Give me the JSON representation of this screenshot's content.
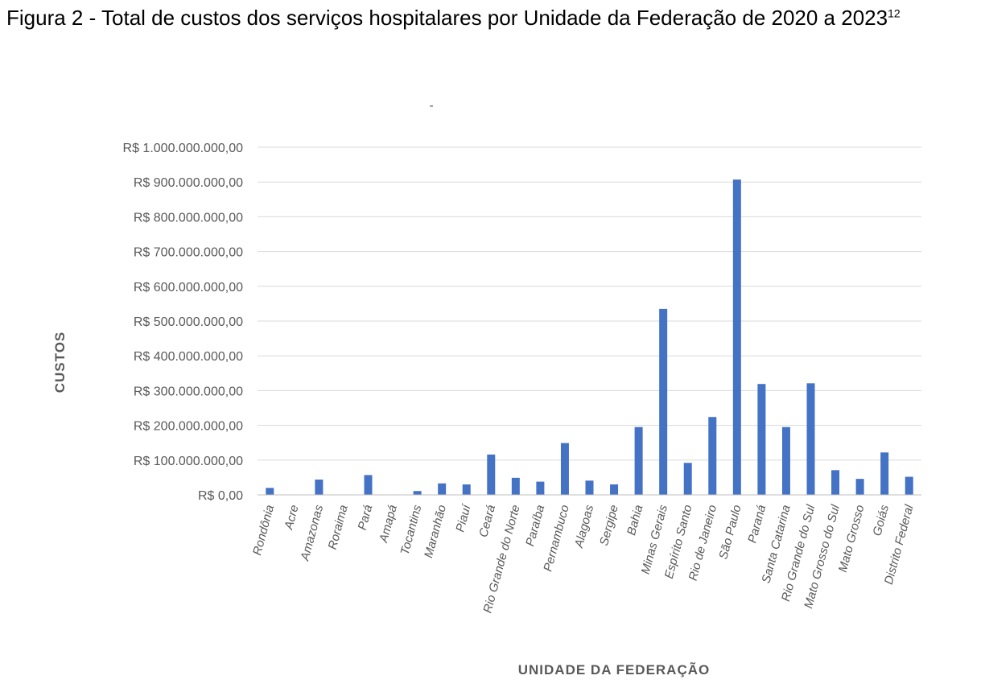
{
  "caption": {
    "text": "Figura 2 - Total de custos dos serviços hospitalares por Unidade da Federação de 2020 a 2023",
    "footnote": "12"
  },
  "chart_data": {
    "type": "bar",
    "title": "",
    "chart_title_mark": "-",
    "xlabel": "UNIDADE DA FEDERAÇÃO",
    "ylabel": "CUSTOS",
    "ylim": [
      0,
      1000000000
    ],
    "grid": true,
    "legend": "none",
    "bar_color": "#4472C4",
    "y_ticks": [
      {
        "value": 0,
        "label": "R$ 0,00"
      },
      {
        "value": 100000000,
        "label": "R$ 100.000.000,00"
      },
      {
        "value": 200000000,
        "label": "R$ 200.000.000,00"
      },
      {
        "value": 300000000,
        "label": "R$ 300.000.000,00"
      },
      {
        "value": 400000000,
        "label": "R$ 400.000.000,00"
      },
      {
        "value": 500000000,
        "label": "R$ 500.000.000,00"
      },
      {
        "value": 600000000,
        "label": "R$ 600.000.000,00"
      },
      {
        "value": 700000000,
        "label": "R$ 700.000.000,00"
      },
      {
        "value": 800000000,
        "label": "R$ 800.000.000,00"
      },
      {
        "value": 900000000,
        "label": "R$ 900.000.000,00"
      },
      {
        "value": 1000000000,
        "label": "R$ 1.000.000.000,00"
      }
    ],
    "categories": [
      "Rondônia",
      "Acre",
      "Amazonas",
      "Roraima",
      "Pará",
      "Amapá",
      "Tocantins",
      "Maranhão",
      "Piauí",
      "Ceará",
      "Rio Grande do Norte",
      "Paraíba",
      "Pernambuco",
      "Alagoas",
      "Sergipe",
      "Bahia",
      "Minas Gerais",
      "Espírito Santo",
      "Rio de Janeiro",
      "São Paulo",
      "Paraná",
      "Santa Catarina",
      "Rio Grande do Sul",
      "Mato Grosso do Sul",
      "Mato Grosso",
      "Goiás",
      "Distrito Federal"
    ],
    "values": [
      20000000,
      1000000,
      44000000,
      1000000,
      57000000,
      1000000,
      11000000,
      33000000,
      30000000,
      116000000,
      49000000,
      38000000,
      149000000,
      41000000,
      30000000,
      195000000,
      535000000,
      92000000,
      224000000,
      907000000,
      319000000,
      195000000,
      321000000,
      71000000,
      46000000,
      122000000,
      52000000
    ]
  }
}
